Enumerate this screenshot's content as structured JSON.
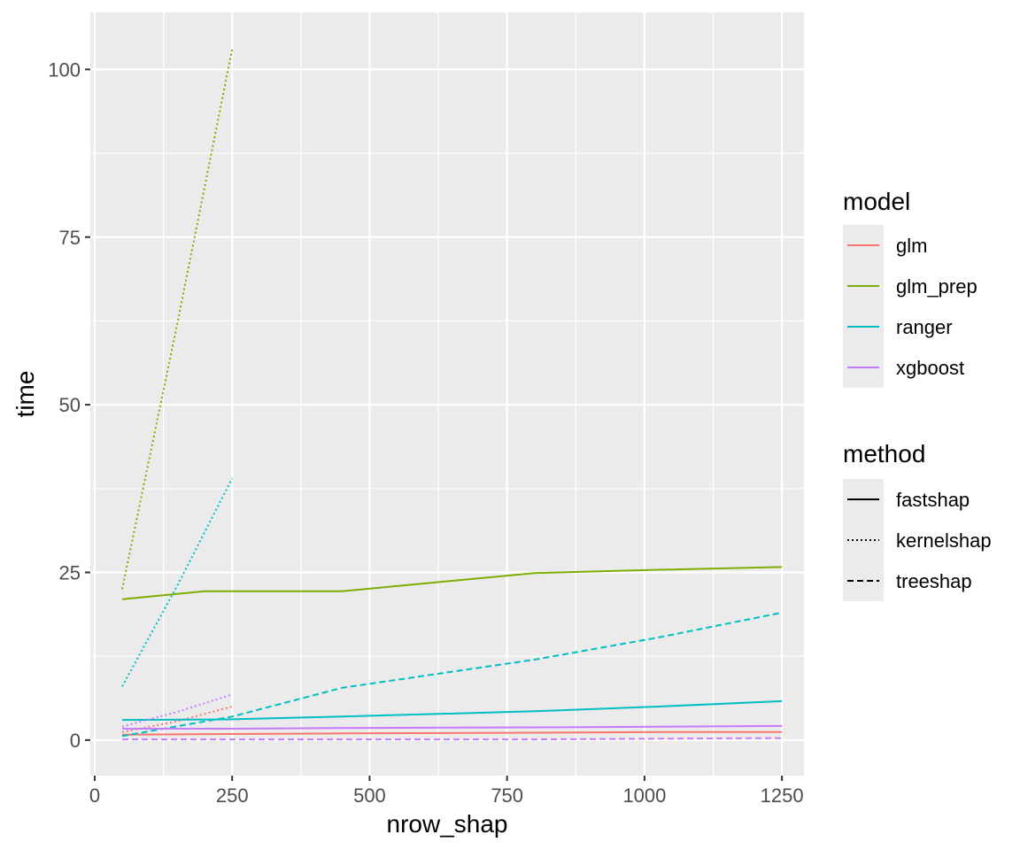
{
  "chart_data": {
    "type": "line",
    "xlabel": "nrow_shap",
    "ylabel": "time",
    "xlim": [
      -8,
      1290
    ],
    "ylim": [
      -5.3,
      108.5
    ],
    "x_ticks": [
      0,
      250,
      500,
      750,
      1000,
      1250
    ],
    "x_tick_labels": [
      "0",
      "250",
      "500",
      "750",
      "1000",
      "1250"
    ],
    "y_ticks": [
      0,
      25,
      50,
      75,
      100
    ],
    "y_tick_labels": [
      "0",
      "25",
      "50",
      "75",
      "100"
    ],
    "grid": true,
    "background": "#ebebeb",
    "legends": [
      {
        "title": "model",
        "kind": "color",
        "entries": [
          {
            "label": "glm",
            "color": "#F8766D"
          },
          {
            "label": "glm_prep",
            "color": "#7CAE00"
          },
          {
            "label": "ranger",
            "color": "#00BFC4"
          },
          {
            "label": "xgboost",
            "color": "#C77CFF"
          }
        ]
      },
      {
        "title": "method",
        "kind": "linetype",
        "entries": [
          {
            "label": "fastshap",
            "dash": "solid"
          },
          {
            "label": "kernelshap",
            "dash": "dotted"
          },
          {
            "label": "treeshap",
            "dash": "dashed"
          }
        ]
      }
    ],
    "legend_position": "right",
    "series": [
      {
        "model": "glm",
        "method": "fastshap",
        "color": "#F8766D",
        "dash": "solid",
        "x": [
          50,
          250,
          450,
          800,
          1025,
          1250
        ],
        "y": [
          0.8,
          0.9,
          1.0,
          1.1,
          1.2,
          1.2
        ]
      },
      {
        "model": "glm",
        "method": "kernelshap",
        "color": "#F8766D",
        "dash": "dotted",
        "x": [
          50,
          150,
          250
        ],
        "y": [
          1.2,
          2.8,
          5.0
        ]
      },
      {
        "model": "glm_prep",
        "method": "fastshap",
        "color": "#7CAE00",
        "dash": "solid",
        "x": [
          50,
          200,
          450,
          800,
          1025,
          1250
        ],
        "y": [
          21.0,
          22.2,
          22.2,
          24.9,
          25.4,
          25.8
        ]
      },
      {
        "model": "glm_prep",
        "method": "kernelshap",
        "color": "#7CAE00",
        "dash": "dotted",
        "x": [
          50,
          150,
          250
        ],
        "y": [
          22.5,
          62.0,
          103.0
        ]
      },
      {
        "model": "ranger",
        "method": "fastshap",
        "color": "#00BFC4",
        "dash": "solid",
        "x": [
          50,
          250,
          450,
          800,
          1025,
          1250
        ],
        "y": [
          3.0,
          3.1,
          3.5,
          4.3,
          5.0,
          5.8
        ]
      },
      {
        "model": "ranger",
        "method": "kernelshap",
        "color": "#00BFC4",
        "dash": "dotted",
        "x": [
          50,
          150,
          250
        ],
        "y": [
          8.0,
          23.0,
          39.0
        ]
      },
      {
        "model": "ranger",
        "method": "treeshap",
        "color": "#00BFC4",
        "dash": "dashed",
        "x": [
          50,
          250,
          450,
          800,
          1025,
          1250
        ],
        "y": [
          0.6,
          3.5,
          7.8,
          12.0,
          15.3,
          19.0
        ]
      },
      {
        "model": "xgboost",
        "method": "fastshap",
        "color": "#C77CFF",
        "dash": "solid",
        "x": [
          50,
          250,
          450,
          800,
          1025,
          1250
        ],
        "y": [
          1.7,
          1.7,
          1.8,
          1.9,
          2.0,
          2.1
        ]
      },
      {
        "model": "xgboost",
        "method": "kernelshap",
        "color": "#C77CFF",
        "dash": "dotted",
        "x": [
          50,
          150,
          250
        ],
        "y": [
          2.0,
          4.2,
          6.8
        ]
      },
      {
        "model": "xgboost",
        "method": "treeshap",
        "color": "#C77CFF",
        "dash": "dashed",
        "x": [
          50,
          250,
          450,
          800,
          1025,
          1250
        ],
        "y": [
          0.1,
          0.1,
          0.1,
          0.1,
          0.2,
          0.3
        ]
      }
    ]
  }
}
